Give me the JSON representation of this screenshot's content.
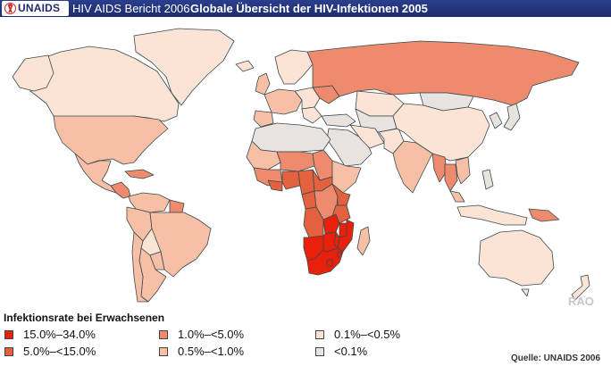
{
  "header": {
    "logo_text": "UNAIDS",
    "report_label": "HIV AIDS Bericht 2006",
    "title": "Globale Übersicht der HIV-Infektionen 2005"
  },
  "map": {
    "watermark": "RAO",
    "colors": {
      "c1": "#e8e3df",
      "c2": "#fbe3d6",
      "c3": "#f7bfa6",
      "c4": "#ee8a6d",
      "c5": "#e3613f",
      "c6": "#e8200c",
      "border": "#3a4a4a"
    }
  },
  "legend": {
    "title": "Infektionsrate bei Erwachsenen",
    "items": [
      {
        "label": "15.0%–34.0%",
        "color": "#e8200c"
      },
      {
        "label": "5.0%–<15.0%",
        "color": "#e3613f"
      },
      {
        "label": "1.0%–<5.0%",
        "color": "#ee8a6d"
      },
      {
        "label": "0.5%–<1.0%",
        "color": "#f7bfa6"
      },
      {
        "label": "0.1%–<0.5%",
        "color": "#fbe3d6"
      },
      {
        "label": "<0.1%",
        "color": "#e8e3df"
      }
    ]
  },
  "source": "Quelle: UNAIDS 2006"
}
